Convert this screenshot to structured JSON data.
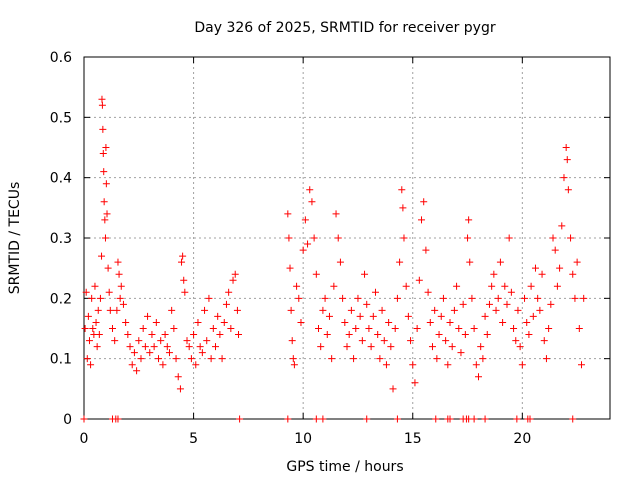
{
  "chart_data": {
    "type": "scatter",
    "title": "Day 326 of 2025, SRMTID for receiver pygr",
    "xlabel": "GPS time / hours",
    "ylabel": "SRMTID / TECUs",
    "xlim": [
      0,
      24
    ],
    "ylim": [
      0,
      0.6
    ],
    "xticks": [
      0,
      5,
      10,
      15,
      20
    ],
    "xtick_labels": [
      "0",
      "5",
      "10",
      "15",
      "20"
    ],
    "yticks": [
      0,
      0.1,
      0.2,
      0.3,
      0.4,
      0.5,
      0.6
    ],
    "ytick_labels": [
      "0",
      "0.1",
      "0.2",
      "0.3",
      "0.4",
      "0.5",
      "0.6"
    ],
    "grid": true,
    "marker": "plus",
    "series_color": "#ff0000",
    "series": [
      {
        "name": "SRMTID",
        "points": [
          [
            0.05,
            0.15
          ],
          [
            0.1,
            0.21
          ],
          [
            0.15,
            0.1
          ],
          [
            0.2,
            0.17
          ],
          [
            0.25,
            0.13
          ],
          [
            0.3,
            0.09
          ],
          [
            0.35,
            0.2
          ],
          [
            0.4,
            0.15
          ],
          [
            0.45,
            0.14
          ],
          [
            0.5,
            0.22
          ],
          [
            0.55,
            0.16
          ],
          [
            0.6,
            0.12
          ],
          [
            0.65,
            0.18
          ],
          [
            0.7,
            0.14
          ],
          [
            0.75,
            0.2
          ],
          [
            0.8,
            0.27
          ],
          [
            0.82,
            0.53
          ],
          [
            0.84,
            0.52
          ],
          [
            0.86,
            0.48
          ],
          [
            0.88,
            0.44
          ],
          [
            0.9,
            0.41
          ],
          [
            0.92,
            0.36
          ],
          [
            0.95,
            0.33
          ],
          [
            0.98,
            0.3
          ],
          [
            1.0,
            0.45
          ],
          [
            1.02,
            0.39
          ],
          [
            1.05,
            0.34
          ],
          [
            1.1,
            0.25
          ],
          [
            1.15,
            0.21
          ],
          [
            1.2,
            0.18
          ],
          [
            1.3,
            0.15
          ],
          [
            1.4,
            0.13
          ],
          [
            1.5,
            0.18
          ],
          [
            1.55,
            0.26
          ],
          [
            1.6,
            0.24
          ],
          [
            1.65,
            0.2
          ],
          [
            1.7,
            0.22
          ],
          [
            1.8,
            0.19
          ],
          [
            1.9,
            0.16
          ],
          [
            2.0,
            0.14
          ],
          [
            2.1,
            0.12
          ],
          [
            2.2,
            0.09
          ],
          [
            2.3,
            0.11
          ],
          [
            2.4,
            0.08
          ],
          [
            2.5,
            0.13
          ],
          [
            2.6,
            0.1
          ],
          [
            2.7,
            0.15
          ],
          [
            2.8,
            0.12
          ],
          [
            2.9,
            0.17
          ],
          [
            3.0,
            0.11
          ],
          [
            3.1,
            0.14
          ],
          [
            3.2,
            0.12
          ],
          [
            3.3,
            0.16
          ],
          [
            3.4,
            0.1
          ],
          [
            3.5,
            0.13
          ],
          [
            3.6,
            0.09
          ],
          [
            3.7,
            0.14
          ],
          [
            3.8,
            0.12
          ],
          [
            3.9,
            0.11
          ],
          [
            4.0,
            0.18
          ],
          [
            4.1,
            0.15
          ],
          [
            4.2,
            0.1
          ],
          [
            4.3,
            0.07
          ],
          [
            4.4,
            0.05
          ],
          [
            4.45,
            0.26
          ],
          [
            4.5,
            0.27
          ],
          [
            4.55,
            0.23
          ],
          [
            4.6,
            0.21
          ],
          [
            4.7,
            0.13
          ],
          [
            4.8,
            0.12
          ],
          [
            4.9,
            0.1
          ],
          [
            5.0,
            0.14
          ],
          [
            5.1,
            0.09
          ],
          [
            5.2,
            0.16
          ],
          [
            5.3,
            0.12
          ],
          [
            5.4,
            0.11
          ],
          [
            5.5,
            0.18
          ],
          [
            5.6,
            0.13
          ],
          [
            5.7,
            0.2
          ],
          [
            5.8,
            0.1
          ],
          [
            5.9,
            0.15
          ],
          [
            6.0,
            0.12
          ],
          [
            6.1,
            0.17
          ],
          [
            6.2,
            0.14
          ],
          [
            6.3,
            0.1
          ],
          [
            6.4,
            0.16
          ],
          [
            6.5,
            0.19
          ],
          [
            6.6,
            0.21
          ],
          [
            6.7,
            0.15
          ],
          [
            6.8,
            0.23
          ],
          [
            6.9,
            0.24
          ],
          [
            7.0,
            0.18
          ],
          [
            7.05,
            0.14
          ],
          [
            9.3,
            0.34
          ],
          [
            9.35,
            0.3
          ],
          [
            9.4,
            0.25
          ],
          [
            9.45,
            0.18
          ],
          [
            9.5,
            0.13
          ],
          [
            9.55,
            0.1
          ],
          [
            9.6,
            0.09
          ],
          [
            9.7,
            0.22
          ],
          [
            9.8,
            0.2
          ],
          [
            9.9,
            0.16
          ],
          [
            10.0,
            0.28
          ],
          [
            10.1,
            0.33
          ],
          [
            10.2,
            0.29
          ],
          [
            10.3,
            0.38
          ],
          [
            10.4,
            0.36
          ],
          [
            10.5,
            0.3
          ],
          [
            10.6,
            0.24
          ],
          [
            10.7,
            0.15
          ],
          [
            10.8,
            0.12
          ],
          [
            10.9,
            0.18
          ],
          [
            11.0,
            0.2
          ],
          [
            11.1,
            0.14
          ],
          [
            11.2,
            0.17
          ],
          [
            11.3,
            0.1
          ],
          [
            11.4,
            0.22
          ],
          [
            11.5,
            0.34
          ],
          [
            11.6,
            0.3
          ],
          [
            11.7,
            0.26
          ],
          [
            11.8,
            0.2
          ],
          [
            11.9,
            0.16
          ],
          [
            12.0,
            0.12
          ],
          [
            12.1,
            0.14
          ],
          [
            12.2,
            0.18
          ],
          [
            12.3,
            0.1
          ],
          [
            12.4,
            0.15
          ],
          [
            12.5,
            0.2
          ],
          [
            12.6,
            0.17
          ],
          [
            12.7,
            0.13
          ],
          [
            12.8,
            0.24
          ],
          [
            12.9,
            0.19
          ],
          [
            13.0,
            0.15
          ],
          [
            13.1,
            0.12
          ],
          [
            13.2,
            0.17
          ],
          [
            13.3,
            0.21
          ],
          [
            13.4,
            0.14
          ],
          [
            13.5,
            0.1
          ],
          [
            13.6,
            0.18
          ],
          [
            13.7,
            0.13
          ],
          [
            13.8,
            0.09
          ],
          [
            13.9,
            0.16
          ],
          [
            14.0,
            0.12
          ],
          [
            14.1,
            0.05
          ],
          [
            14.2,
            0.15
          ],
          [
            14.3,
            0.2
          ],
          [
            14.4,
            0.26
          ],
          [
            14.5,
            0.38
          ],
          [
            14.55,
            0.35
          ],
          [
            14.6,
            0.3
          ],
          [
            14.7,
            0.22
          ],
          [
            14.8,
            0.17
          ],
          [
            14.9,
            0.13
          ],
          [
            15.0,
            0.09
          ],
          [
            15.1,
            0.06
          ],
          [
            15.2,
            0.15
          ],
          [
            15.3,
            0.23
          ],
          [
            15.4,
            0.33
          ],
          [
            15.5,
            0.36
          ],
          [
            15.6,
            0.28
          ],
          [
            15.7,
            0.21
          ],
          [
            15.8,
            0.16
          ],
          [
            15.9,
            0.12
          ],
          [
            16.0,
            0.18
          ],
          [
            16.1,
            0.1
          ],
          [
            16.2,
            0.14
          ],
          [
            16.3,
            0.17
          ],
          [
            16.4,
            0.2
          ],
          [
            16.5,
            0.13
          ],
          [
            16.6,
            0.09
          ],
          [
            16.7,
            0.16
          ],
          [
            16.8,
            0.12
          ],
          [
            16.9,
            0.18
          ],
          [
            17.0,
            0.22
          ],
          [
            17.1,
            0.15
          ],
          [
            17.2,
            0.11
          ],
          [
            17.3,
            0.19
          ],
          [
            17.4,
            0.14
          ],
          [
            17.5,
            0.3
          ],
          [
            17.55,
            0.33
          ],
          [
            17.6,
            0.26
          ],
          [
            17.7,
            0.2
          ],
          [
            17.8,
            0.15
          ],
          [
            17.9,
            0.09
          ],
          [
            18.0,
            0.07
          ],
          [
            18.1,
            0.12
          ],
          [
            18.2,
            0.1
          ],
          [
            18.3,
            0.17
          ],
          [
            18.4,
            0.14
          ],
          [
            18.5,
            0.19
          ],
          [
            18.6,
            0.22
          ],
          [
            18.7,
            0.24
          ],
          [
            18.8,
            0.18
          ],
          [
            18.9,
            0.2
          ],
          [
            19.0,
            0.26
          ],
          [
            19.1,
            0.16
          ],
          [
            19.2,
            0.22
          ],
          [
            19.3,
            0.19
          ],
          [
            19.4,
            0.3
          ],
          [
            19.5,
            0.21
          ],
          [
            19.6,
            0.15
          ],
          [
            19.7,
            0.13
          ],
          [
            19.8,
            0.18
          ],
          [
            19.9,
            0.12
          ],
          [
            20.0,
            0.09
          ],
          [
            20.1,
            0.2
          ],
          [
            20.2,
            0.16
          ],
          [
            20.3,
            0.14
          ],
          [
            20.4,
            0.22
          ],
          [
            20.5,
            0.17
          ],
          [
            20.6,
            0.25
          ],
          [
            20.7,
            0.2
          ],
          [
            20.8,
            0.18
          ],
          [
            20.9,
            0.24
          ],
          [
            21.0,
            0.13
          ],
          [
            21.1,
            0.1
          ],
          [
            21.2,
            0.15
          ],
          [
            21.3,
            0.19
          ],
          [
            21.4,
            0.3
          ],
          [
            21.5,
            0.28
          ],
          [
            21.6,
            0.22
          ],
          [
            21.7,
            0.25
          ],
          [
            21.8,
            0.32
          ],
          [
            21.9,
            0.4
          ],
          [
            22.0,
            0.45
          ],
          [
            22.05,
            0.43
          ],
          [
            22.1,
            0.38
          ],
          [
            22.2,
            0.3
          ],
          [
            22.3,
            0.24
          ],
          [
            22.4,
            0.2
          ],
          [
            22.5,
            0.26
          ],
          [
            22.6,
            0.15
          ],
          [
            22.7,
            0.09
          ],
          [
            22.8,
            0.2
          ]
        ]
      }
    ],
    "baseline_points_x": [
      0.0,
      1.3,
      1.45,
      1.55,
      7.1,
      9.3,
      10.6,
      10.9,
      12.9,
      14.3,
      16.05,
      16.6,
      16.7,
      17.3,
      17.45,
      17.55,
      17.8,
      18.3,
      19.75,
      20.25,
      20.35,
      22.3
    ]
  }
}
